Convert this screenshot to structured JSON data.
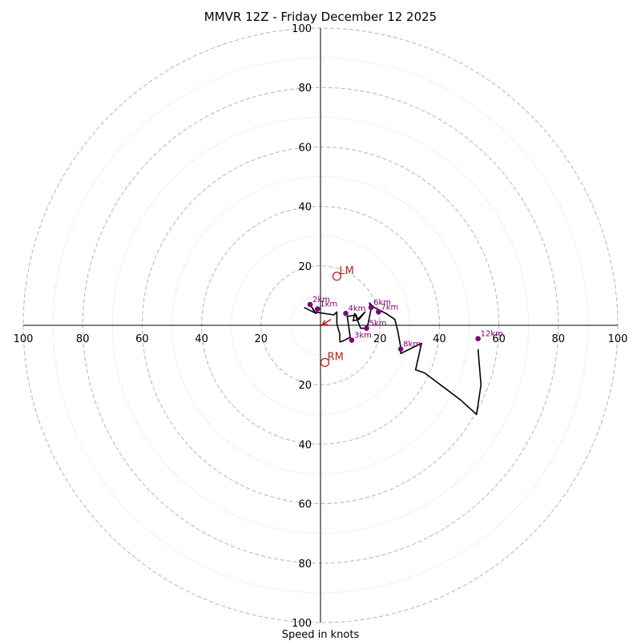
{
  "chart_data": {
    "type": "scatter",
    "title": "MMVR 12Z - Friday December 12 2025",
    "xlabel": "Speed in knots",
    "max_speed": 100,
    "major_rings": [
      20,
      40,
      60,
      80,
      100
    ],
    "minor_rings": [
      10,
      30,
      50,
      70,
      90
    ],
    "x_ticks": [
      "100",
      "80",
      "60",
      "40",
      "20",
      "20",
      "40",
      "60",
      "80",
      "100"
    ],
    "x_tick_values": [
      -100,
      -80,
      -60,
      -40,
      -20,
      20,
      40,
      60,
      80,
      100
    ],
    "y_ticks": [
      "100",
      "80",
      "60",
      "40",
      "20",
      "20",
      "40",
      "60",
      "80",
      "100"
    ],
    "y_tick_values": [
      100,
      80,
      60,
      40,
      20,
      -20,
      -40,
      -60,
      -80,
      -100
    ],
    "hodograph_trace": [
      [
        -5.5,
        6.0
      ],
      [
        -1.5,
        4.0
      ],
      [
        -3.5,
        7.0
      ],
      [
        -2.0,
        4.5
      ],
      [
        4.5,
        3.5
      ],
      [
        5.5,
        4.5
      ],
      [
        5.5,
        0.5
      ],
      [
        6.5,
        -3.0
      ],
      [
        6.5,
        -5.5
      ],
      [
        7.0,
        -5.5
      ],
      [
        8.5,
        -4.8
      ],
      [
        10.0,
        -4.0
      ],
      [
        9.0,
        3.0
      ],
      [
        10.5,
        3.2
      ],
      [
        12.0,
        3.5
      ],
      [
        12.5,
        2.0
      ],
      [
        15.0,
        4.5
      ],
      [
        13.0,
        2.0
      ],
      [
        11.0,
        1.5
      ],
      [
        11.5,
        4.0
      ],
      [
        13.5,
        -1.0
      ],
      [
        15.5,
        -1.0
      ],
      [
        16.0,
        0.5
      ],
      [
        17.0,
        5.5
      ],
      [
        16.5,
        7.5
      ],
      [
        18.0,
        6.0
      ],
      [
        20.0,
        5.0
      ],
      [
        22.0,
        4.0
      ],
      [
        25.0,
        2.0
      ],
      [
        26.0,
        -2.0
      ],
      [
        27.0,
        -7.5
      ],
      [
        27.0,
        -9.5
      ],
      [
        34.0,
        -6.0
      ],
      [
        32.0,
        -15.0
      ],
      [
        35.0,
        -16.0
      ],
      [
        47.0,
        -25.0
      ],
      [
        52.5,
        -30.0
      ],
      [
        54.0,
        -20.0
      ],
      [
        53.0,
        -8.0
      ]
    ],
    "storm_motion": {
      "right_mover": {
        "label": "RM",
        "u": 1.5,
        "v": -12.5,
        "color": "#b22222"
      },
      "left_mover": {
        "label": "LM",
        "u": 5.5,
        "v": 16.5,
        "color": "#b22222"
      },
      "mean_wind_arrow": {
        "u_from": 3.5,
        "v_from": 2.0,
        "u_to": 0.5,
        "v_to": 0.0,
        "color": "#cc0000"
      }
    },
    "height_markers": [
      {
        "label": "2km",
        "u": -3.5,
        "v": 7.0
      },
      {
        "label": "1km",
        "u": -1.0,
        "v": 5.5
      },
      {
        "label": "4km",
        "u": 8.5,
        "v": 4.0
      },
      {
        "label": "6km",
        "u": 17.0,
        "v": 6.0
      },
      {
        "label": "7km",
        "u": 19.5,
        "v": 4.5
      },
      {
        "label": "5km",
        "u": 15.5,
        "v": -1.0
      },
      {
        "label": "3km",
        "u": 10.5,
        "v": -5.0
      },
      {
        "label": "8km",
        "u": 27.0,
        "v": -8.0
      },
      {
        "label": "12km",
        "u": 53.0,
        "v": -4.5
      }
    ],
    "colors": {
      "trace": "#000000",
      "height_marker": "#800080",
      "storm_marker": "#b22222"
    }
  }
}
